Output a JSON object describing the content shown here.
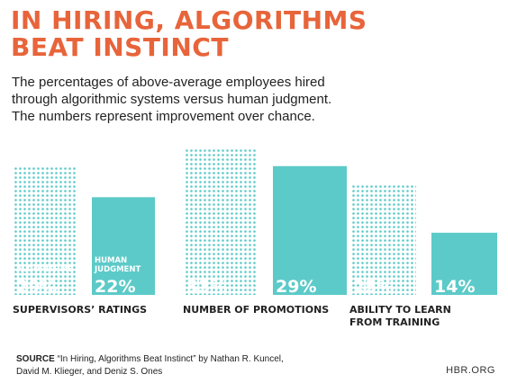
{
  "header": {
    "title_line1": "IN HIRING, ALGORITHMS",
    "title_line2": "BEAT INSTINCT",
    "subtitle_line1": "The percentages of above-average employees hired",
    "subtitle_line2": "through algorithmic systems versus human judgment.",
    "subtitle_line3": "The numbers represent improvement over chance."
  },
  "colors": {
    "title": "#e8643a",
    "teal": "#5ccac8",
    "group_label": "#222222"
  },
  "chart_data": {
    "type": "bar",
    "categories": [
      "SUPERVISORS' RATINGS",
      "NUMBER OF PROMOTIONS",
      "ABILITY TO LEARN FROM TRAINING"
    ],
    "category_lines": [
      [
        "SUPERVISORS’ RATINGS"
      ],
      [
        "NUMBER OF PROMOTIONS"
      ],
      [
        "ABILITY TO LEARN",
        "FROM TRAINING"
      ]
    ],
    "series": [
      {
        "name": "ALGORITHMS",
        "values": [
          29,
          33,
          25
        ],
        "labels": [
          "29%",
          "33%",
          "25%"
        ],
        "style": "dotted"
      },
      {
        "name": "HUMAN JUDGMENT",
        "values": [
          22,
          29,
          14
        ],
        "labels": [
          "22%",
          "29%",
          "14%"
        ],
        "style": "solid"
      }
    ],
    "series_label_lines": [
      [
        "ALGORITHMS"
      ],
      [
        "HUMAN",
        "JUDGMENT"
      ]
    ],
    "ylim": [
      0,
      33
    ]
  },
  "footer": {
    "source_label": "SOURCE",
    "source_line1": "“In Hiring, Algorithms Beat Instinct” by Nathan R. Kuncel,",
    "source_line2": "David M. Klieger, and Deniz S. Ones",
    "site": "HBR.ORG"
  }
}
